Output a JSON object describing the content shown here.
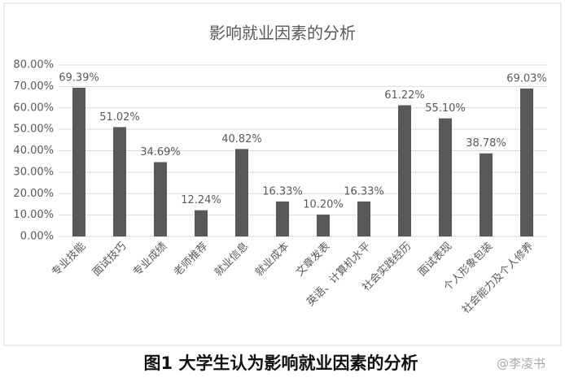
{
  "chart_data": {
    "type": "bar",
    "title": "影响就业因素的分析",
    "categories": [
      "专业技能",
      "面试技巧",
      "专业成绩",
      "老师推荐",
      "就业信息",
      "就业成本",
      "文章发表",
      "英语、计算机水平",
      "社会实践经历",
      "面试表现",
      "个人形象包装",
      "社会能力及个人修养"
    ],
    "values": [
      69.39,
      51.02,
      34.69,
      12.24,
      40.82,
      16.33,
      10.2,
      16.33,
      61.22,
      55.1,
      38.78,
      69.03
    ],
    "value_labels": [
      "69.39%",
      "51.02%",
      "34.69%",
      "12.24%",
      "40.82%",
      "16.33%",
      "10.20%",
      "16.33%",
      "61.22%",
      "55.10%",
      "38.78%",
      "69.03%"
    ],
    "color": "#595959",
    "ylim": [
      0,
      80
    ],
    "yticks": [
      {
        "value": 0,
        "label": "0.00%"
      },
      {
        "value": 10,
        "label": "10.00%"
      },
      {
        "value": 20,
        "label": "20.00%"
      },
      {
        "value": 30,
        "label": "30.00%"
      },
      {
        "value": 40,
        "label": "40.00%"
      },
      {
        "value": 50,
        "label": "50.00%"
      },
      {
        "value": 60,
        "label": "60.00%"
      },
      {
        "value": 70,
        "label": "70.00%"
      },
      {
        "value": 80,
        "label": "80.00%"
      }
    ],
    "grid": true
  },
  "caption": "图1  大学生认为影响就业因素的分析",
  "watermark": "@李凌书"
}
